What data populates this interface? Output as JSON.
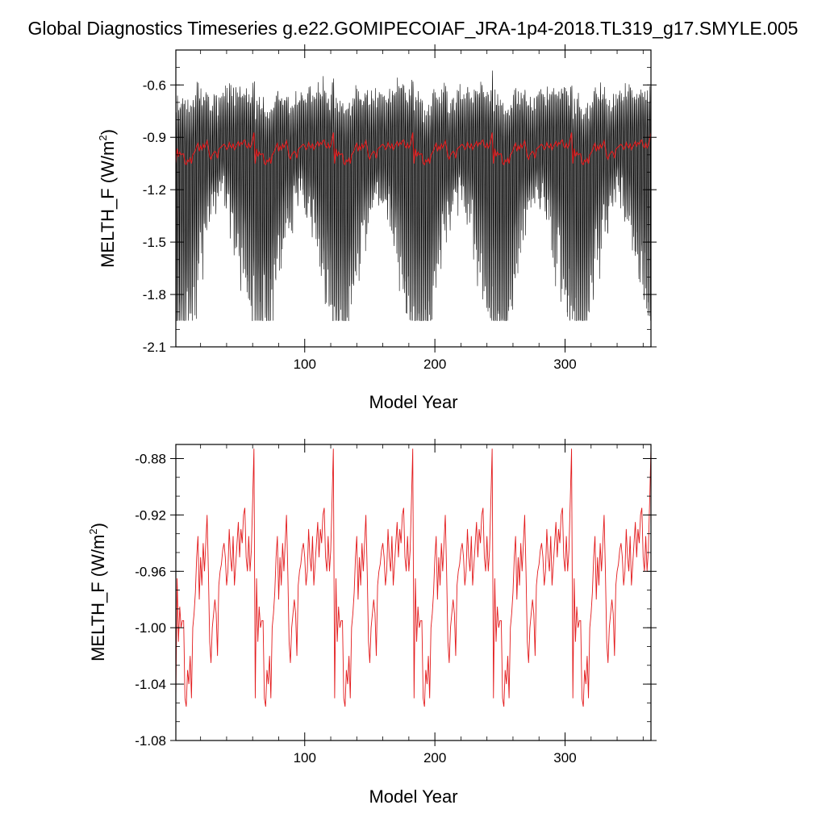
{
  "title": "Global Diagnostics Timeseries g.e22.GOMIPECOIAF_JRA-1p4-2018.TL319_g17.SMYLE.005",
  "colors": {
    "raw": "#000000",
    "smoothed": "#e31a1c",
    "axis": "#000000"
  },
  "chart_data": [
    {
      "type": "line",
      "title": "",
      "xlabel": "Model Year",
      "ylabel": "MELTH_F (W/m",
      "ylabel_sup": "2",
      "ylabel_close": ")",
      "xlim": [
        1,
        366
      ],
      "ylim": [
        -2.1,
        -0.4
      ],
      "xticks": [
        100,
        200,
        300
      ],
      "xtick_labels": [
        "100",
        "200",
        "300"
      ],
      "yticks": [
        -2.1,
        -1.8,
        -1.5,
        -1.2,
        -0.9,
        -0.6
      ],
      "ytick_labels": [
        "-2.1",
        "-1.8",
        "-1.5",
        "-1.2",
        "-0.9",
        "-0.6"
      ],
      "grid": false,
      "series": [
        {
          "style": "monthly-raw",
          "color": "#000000",
          "min_range": [
            -1.95,
            -1.35
          ],
          "max_range": [
            -0.62,
            -0.49
          ],
          "period_years": 61
        },
        {
          "style": "annual-mean",
          "color": "#e31a1c",
          "y_range": [
            -1.06,
            -0.88
          ],
          "period_years": 61
        }
      ]
    },
    {
      "type": "line",
      "title": "",
      "xlabel": "Model Year",
      "ylabel": "MELTH_F (W/m",
      "ylabel_sup": "2",
      "ylabel_close": ")",
      "xlim": [
        1,
        366
      ],
      "ylim": [
        -1.08,
        -0.87
      ],
      "xticks": [
        100,
        200,
        300
      ],
      "xtick_labels": [
        "100",
        "200",
        "300"
      ],
      "yticks": [
        -1.08,
        -1.04,
        -1.0,
        -0.96,
        -0.92,
        -0.88
      ],
      "ytick_labels": [
        "-1.08",
        "-1.04",
        "-1.00",
        "-0.96",
        "-0.92",
        "-0.88"
      ],
      "grid": false,
      "series": [
        {
          "style": "annual-mean",
          "color": "#e31a1c",
          "period_years": 61,
          "cycle_values": [
            -1.05,
            -0.965,
            -1.01,
            -0.985,
            -1.0,
            -0.995,
            -0.995,
            -1.05,
            -1.056,
            -1.03,
            -1.04,
            -1.02,
            -1.05,
            -1.0,
            -0.99,
            -0.975,
            -0.95,
            -0.935,
            -0.98,
            -0.95,
            -0.97,
            -0.94,
            -0.96,
            -0.94,
            -0.92,
            -0.96,
            -1.01,
            -1.025,
            -1.0,
            -0.99,
            -0.98,
            -0.99,
            -1.02,
            -0.97,
            -0.96,
            -0.955,
            -0.945,
            -0.94,
            -0.95,
            -0.97,
            -0.96,
            -0.93,
            -0.95,
            -0.96,
            -0.935,
            -0.97,
            -0.955,
            -0.94,
            -0.925,
            -0.95,
            -0.93,
            -0.94,
            -0.92,
            -0.915,
            -0.95,
            -0.96,
            -0.935,
            -0.96,
            -0.945,
            -0.91,
            -0.873
          ]
        }
      ]
    }
  ]
}
